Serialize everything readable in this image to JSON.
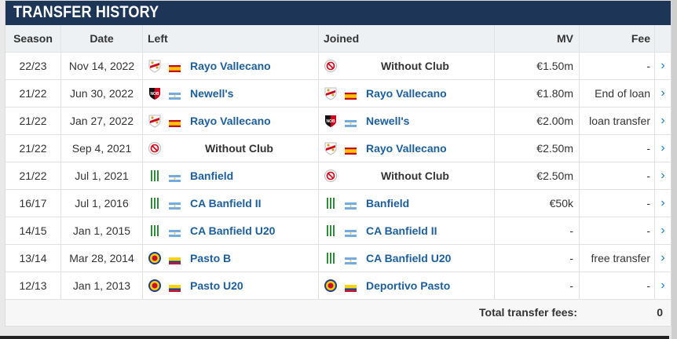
{
  "title": "TRANSFER HISTORY",
  "columns": {
    "season": "Season",
    "date": "Date",
    "left": "Left",
    "joined": "Joined",
    "mv": "MV",
    "fee": "Fee"
  },
  "rows": [
    {
      "season": "22/23",
      "date": "Nov 14, 2022",
      "left": "Rayo Vallecano",
      "left_crest": "rayo-crest-icon",
      "left_flag": "spain-flag-icon",
      "joined": "Without Club",
      "joined_crest": "without-club-icon",
      "joined_flag": "",
      "mv": "€1.50m",
      "fee": "-"
    },
    {
      "season": "21/22",
      "date": "Jun 30, 2022",
      "left": "Newell's",
      "left_crest": "newells-crest-icon",
      "left_flag": "argentina-flag-icon",
      "joined": "Rayo Vallecano",
      "joined_crest": "rayo-crest-icon",
      "joined_flag": "spain-flag-icon",
      "mv": "€1.80m",
      "fee": "End of loan"
    },
    {
      "season": "21/22",
      "date": "Jan 27, 2022",
      "left": "Rayo Vallecano",
      "left_crest": "rayo-crest-icon",
      "left_flag": "spain-flag-icon",
      "joined": "Newell's",
      "joined_crest": "newells-crest-icon",
      "joined_flag": "argentina-flag-icon",
      "mv": "€2.00m",
      "fee": "loan transfer"
    },
    {
      "season": "21/22",
      "date": "Sep 4, 2021",
      "left": "Without Club",
      "left_crest": "without-club-icon",
      "left_flag": "",
      "joined": "Rayo Vallecano",
      "joined_crest": "rayo-crest-icon",
      "joined_flag": "spain-flag-icon",
      "mv": "€2.50m",
      "fee": "-"
    },
    {
      "season": "21/22",
      "date": "Jul 1, 2021",
      "left": "Banfield",
      "left_crest": "banfield-crest-icon",
      "left_flag": "argentina-flag-icon",
      "joined": "Without Club",
      "joined_crest": "without-club-icon",
      "joined_flag": "",
      "mv": "€2.50m",
      "fee": "-"
    },
    {
      "season": "16/17",
      "date": "Jul 1, 2016",
      "left": "CA Banfield II",
      "left_crest": "banfield-crest-icon",
      "left_flag": "argentina-flag-icon",
      "joined": "Banfield",
      "joined_crest": "banfield-crest-icon",
      "joined_flag": "argentina-flag-icon",
      "mv": "€50k",
      "fee": "-"
    },
    {
      "season": "14/15",
      "date": "Jan 1, 2015",
      "left": "CA Banfield U20",
      "left_crest": "banfield-crest-icon",
      "left_flag": "argentina-flag-icon",
      "joined": "CA Banfield II",
      "joined_crest": "banfield-crest-icon",
      "joined_flag": "argentina-flag-icon",
      "mv": "-",
      "fee": "-"
    },
    {
      "season": "13/14",
      "date": "Mar 28, 2014",
      "left": "Pasto B",
      "left_crest": "pasto-crest-icon",
      "left_flag": "colombia-flag-icon",
      "joined": "CA Banfield U20",
      "joined_crest": "banfield-crest-icon",
      "joined_flag": "argentina-flag-icon",
      "mv": "-",
      "fee": "free transfer"
    },
    {
      "season": "12/13",
      "date": "Jan 1, 2013",
      "left": "Pasto U20",
      "left_crest": "pasto-crest-icon",
      "left_flag": "colombia-flag-icon",
      "joined": "Deportivo Pasto",
      "joined_crest": "pasto-crest-icon",
      "joined_flag": "colombia-flag-icon",
      "mv": "-",
      "fee": "-"
    }
  ],
  "arrow": "›",
  "footer": {
    "label": "Total transfer fees:",
    "value": "0"
  },
  "colors": {
    "header_bg": "#1d3557",
    "link": "#1d5f9c",
    "arrow": "#1a7fc1"
  }
}
